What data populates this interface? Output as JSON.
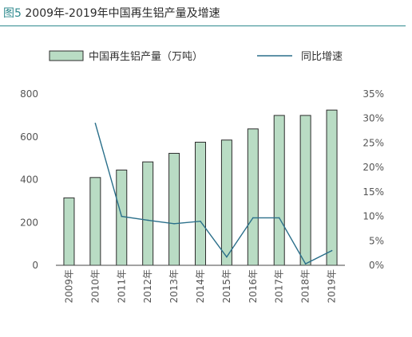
{
  "header": {
    "figure_label": "图5",
    "title_text": "2009年-2019年中国再生铝产量及增速"
  },
  "colors": {
    "bar_fill": "#b9dcc4",
    "bar_stroke": "#2d2d2d",
    "line": "#2a6f8a",
    "accent": "#2f8a8e"
  },
  "chart_data": {
    "type": "bar",
    "categories": [
      "2009年",
      "2010年",
      "2011年",
      "2012年",
      "2013年",
      "2014年",
      "2015年",
      "2016年",
      "2017年",
      "2018年",
      "2019年"
    ],
    "series": [
      {
        "name": "中国再生铝产量（万吨）",
        "type": "bar",
        "axis": "left",
        "values": [
          315,
          410,
          445,
          483,
          523,
          575,
          585,
          637,
          700,
          700,
          725
        ]
      },
      {
        "name": "同比增速",
        "type": "line",
        "axis": "right",
        "values": [
          null,
          0.29,
          0.1,
          0.092,
          0.085,
          0.09,
          0.017,
          0.097,
          0.097,
          0.003,
          0.03
        ]
      }
    ],
    "ylim_left": [
      0,
      800
    ],
    "yticks_left": [
      "0",
      "200",
      "400",
      "600",
      "800"
    ],
    "ylim_right": [
      0,
      0.35
    ],
    "yticks_right": [
      "0%",
      "5%",
      "10%",
      "15%",
      "20%",
      "25%",
      "30%",
      "35%"
    ],
    "legend_position": "top"
  }
}
